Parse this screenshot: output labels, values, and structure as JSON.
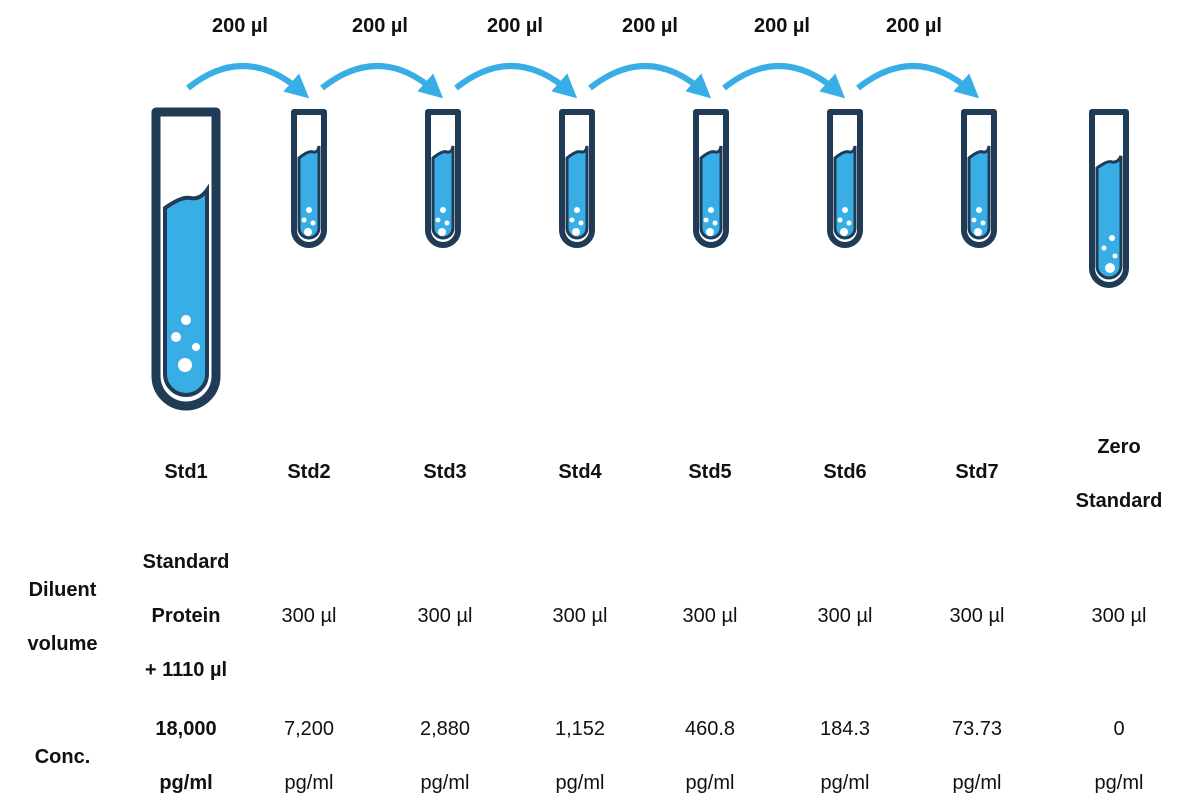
{
  "transfers": [
    "200 µl",
    "200 µl",
    "200 µl",
    "200 µl",
    "200 µl",
    "200 µl"
  ],
  "colors": {
    "outline": "#1f3b55",
    "liquid": "#39aee6",
    "arrow": "#39aee6"
  },
  "tubes": [
    "Std1",
    "Std2",
    "Std3",
    "Std4",
    "Std5",
    "Std6",
    "Std7",
    "Zero Standard"
  ],
  "headers": {
    "std1": "Std1",
    "std2": "Std2",
    "std3": "Std3",
    "std4": "Std4",
    "std5": "Std5",
    "std6": "Std6",
    "std7": "Std7",
    "zero_line1": "Zero",
    "zero_line2": "Standard"
  },
  "rows": {
    "diluent": {
      "label_line1": "Diluent",
      "label_line2": "volume",
      "std1_line1": "Standard",
      "std1_line2": "Protein",
      "std1_line3": "+ 1110 µl",
      "values": [
        "300 µl",
        "300 µl",
        "300 µl",
        "300 µl",
        "300 µl",
        "300 µl",
        "300 µl"
      ]
    },
    "conc": {
      "label": "Conc.",
      "std1_line1": "18,000",
      "std1_line2": "pg/ml",
      "values": [
        "7,200",
        "2,880",
        "1,152",
        "460.8",
        "184.3",
        "73.73",
        "0"
      ],
      "unit": "pg/ml"
    }
  }
}
